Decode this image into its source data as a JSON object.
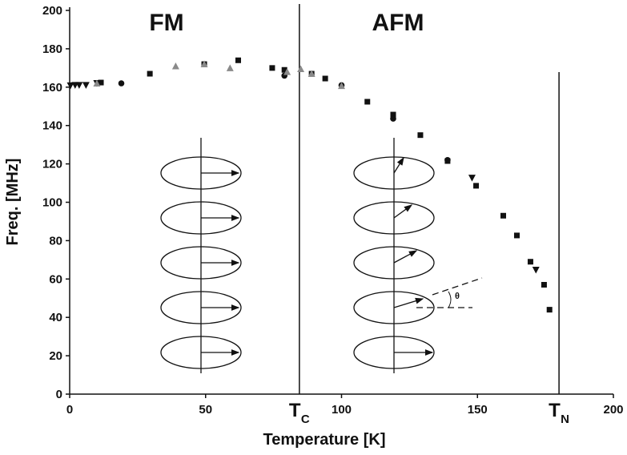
{
  "chart_data": {
    "type": "scatter",
    "xlabel": "Temperature [K]",
    "ylabel": "Freq. [MHz]",
    "xlim": [
      0,
      200
    ],
    "xticks": [
      0,
      50,
      100,
      150,
      200
    ],
    "ylim": [
      0,
      200
    ],
    "yticks": [
      0,
      20,
      40,
      60,
      80,
      100,
      120,
      140,
      160,
      180,
      200
    ],
    "annotations": [
      "FM",
      "AFM",
      "θ"
    ],
    "vlines": [
      {
        "label": "T",
        "subscript": "C",
        "x": 84.5
      },
      {
        "label": "T",
        "subscript": "N",
        "x": 180
      }
    ],
    "series": [
      {
        "marker": "square",
        "color": "#111111",
        "x": [
          11.5,
          29.5,
          49.5,
          62,
          74.5,
          79,
          89,
          94,
          109.5,
          119,
          129,
          139,
          149.5,
          159.5,
          164.5,
          169.5,
          174.5,
          176.5
        ],
        "values": [
          162.4,
          167,
          172,
          174,
          170,
          169,
          167,
          164.5,
          152.4,
          145.7,
          135,
          121.5,
          108.6,
          93,
          82.7,
          69,
          57,
          44
        ]
      },
      {
        "marker": "circle",
        "color": "#111111",
        "x": [
          19,
          79,
          100,
          119,
          139
        ],
        "values": [
          162,
          166,
          161,
          143.6,
          122
        ]
      },
      {
        "marker": "triangle-down",
        "color": "#111111",
        "x": [
          0.3,
          2,
          3.5,
          6,
          10,
          148,
          171.5
        ],
        "values": [
          160.8,
          161,
          161,
          161,
          162,
          112.7,
          64.7
        ]
      },
      {
        "marker": "triangle-up",
        "color": "#8a8a8a",
        "x": [
          10,
          39,
          49.5,
          59,
          80,
          85,
          89,
          100
        ],
        "values": [
          162,
          171,
          172,
          170,
          168,
          169.5,
          167,
          160.7
        ]
      }
    ]
  }
}
